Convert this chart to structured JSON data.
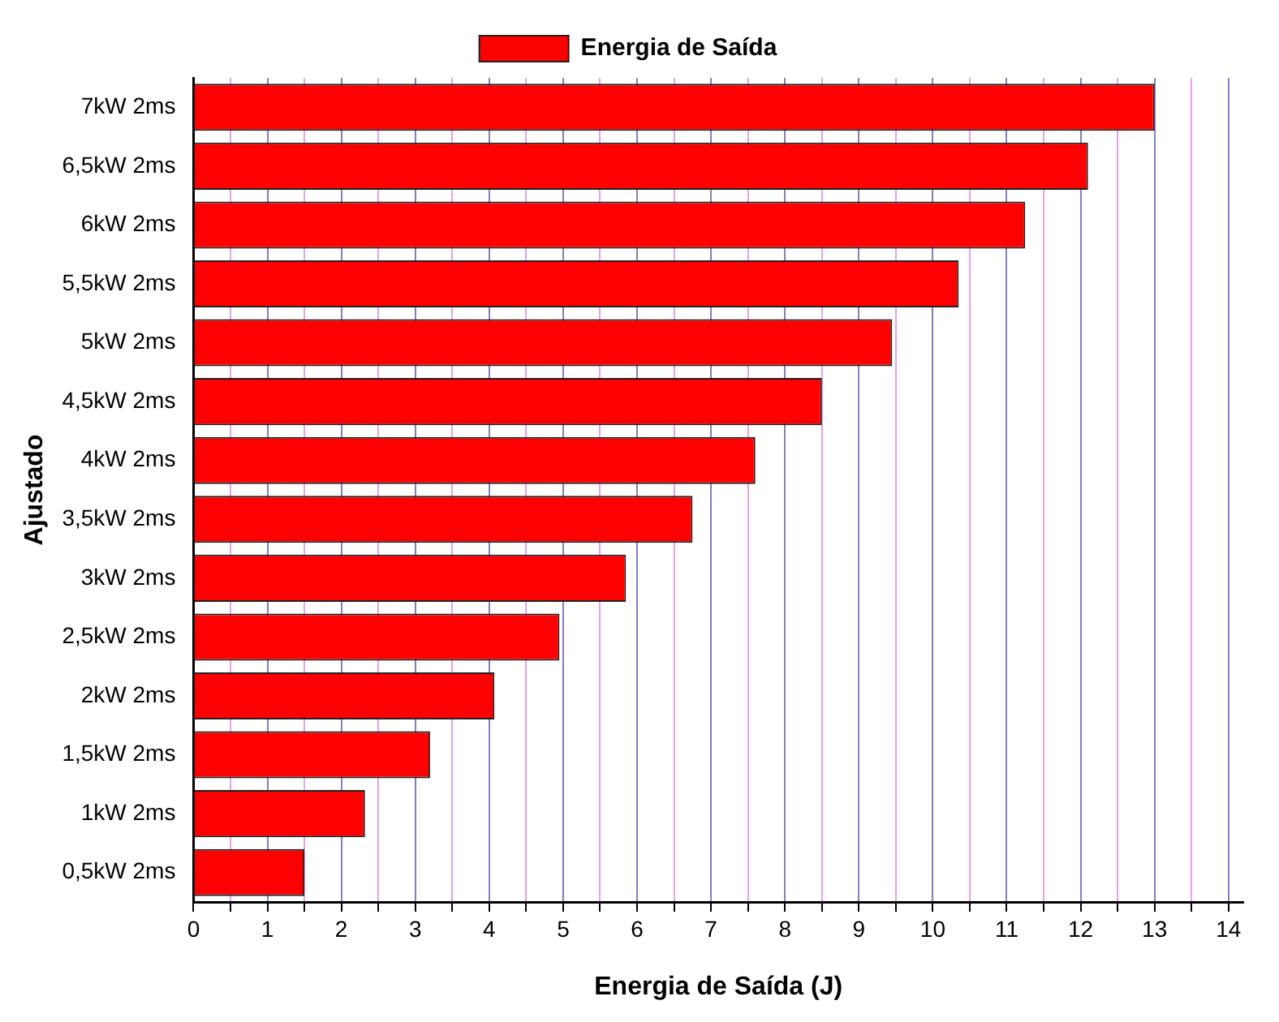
{
  "chart_data": {
    "type": "bar",
    "orientation": "horizontal",
    "xlabel": "Energia de Saída (J)",
    "ylabel": "Ajustado",
    "categories": [
      "7kW 2ms",
      "6,5kW 2ms",
      "6kW 2ms",
      "5,5kW 2ms",
      "5kW 2ms",
      "4,5kW 2ms",
      "4kW 2ms",
      "3,5kW 2ms",
      "3kW 2ms",
      "2,5kW 2ms",
      "2kW 2ms",
      "1,5kW 2ms",
      "1kW 2ms",
      "0,5kW 2ms"
    ],
    "series": [
      {
        "name": "Energia de Saída",
        "color": "#ff0000",
        "values": [
          13.0,
          12.1,
          11.25,
          10.35,
          9.45,
          8.5,
          7.6,
          6.75,
          5.85,
          4.95,
          4.07,
          3.2,
          2.32,
          1.5
        ]
      }
    ],
    "xlim": [
      0,
      14.2
    ],
    "xticks": [
      0,
      {
        "value": 0.5,
        "label": null
      },
      1,
      {
        "value": 1.5,
        "label": null
      },
      2,
      {
        "value": 2.5,
        "label": null
      },
      3,
      {
        "value": 3.5,
        "label": null
      },
      4,
      {
        "value": 4.5,
        "label": null
      },
      5,
      {
        "value": 5.5,
        "label": null
      },
      6,
      {
        "value": 6.5,
        "label": null
      },
      7,
      {
        "value": 7.5,
        "label": null
      },
      8,
      {
        "value": 8.5,
        "label": null
      },
      9,
      {
        "value": 9.5,
        "label": null
      },
      10,
      {
        "value": 10.5,
        "label": null
      },
      11,
      {
        "value": 11.5,
        "label": null
      },
      12,
      {
        "value": 12.5,
        "label": null
      },
      13,
      {
        "value": 13.5,
        "label": null
      },
      14
    ],
    "grid": "x",
    "legend": "top"
  }
}
